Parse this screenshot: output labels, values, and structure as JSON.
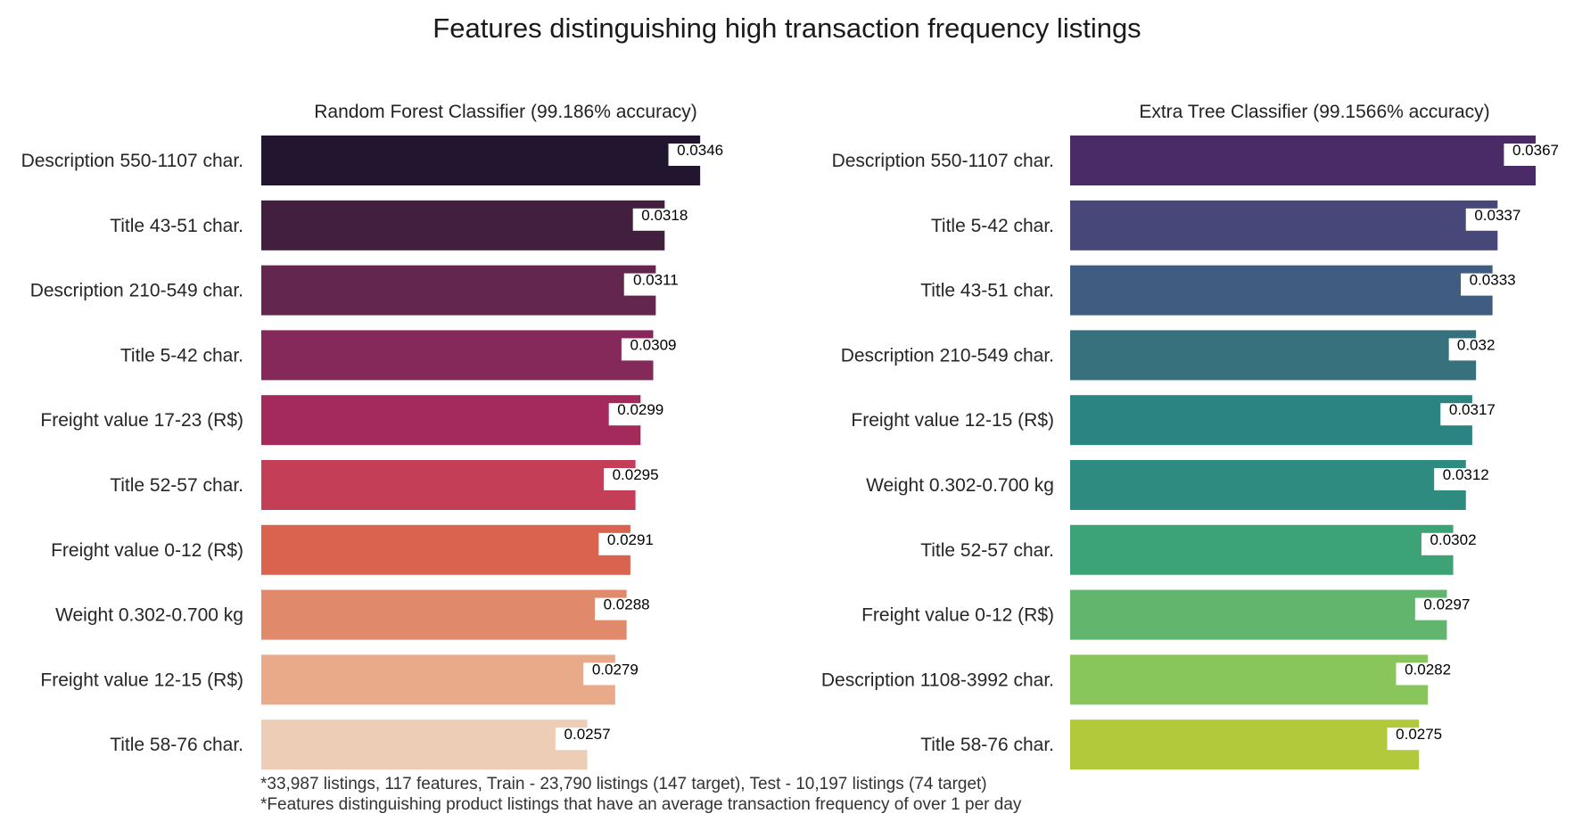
{
  "title": "Features distinguishing high transaction frequency listings",
  "chart_data": [
    {
      "type": "bar",
      "orientation": "horizontal",
      "title": "Random Forest Classifier (99.186% accuracy)",
      "categories": [
        "Description 550-1107 char.",
        "Title 43-51 char.",
        "Description 210-549 char.",
        "Title 5-42 char.",
        "Freight value 17-23 (R$)",
        "Title 52-57 char.",
        "Freight value 0-12 (R$)",
        "Weight 0.302-0.700 kg",
        "Freight value 12-15 (R$)",
        "Title 58-76 char."
      ],
      "values": [
        0.0346,
        0.0318,
        0.0311,
        0.0309,
        0.0299,
        0.0295,
        0.0291,
        0.0288,
        0.0279,
        0.0257
      ],
      "data_labels": [
        "0.0346",
        "0.0318",
        "0.0311",
        "0.0309",
        "0.0299",
        "0.0295",
        "0.0291",
        "0.0288",
        "0.0279",
        "0.0257"
      ],
      "colors": [
        "#221530",
        "#421f3f",
        "#63264f",
        "#85295a",
        "#a52a5c",
        "#c43e58",
        "#d9634f",
        "#e1896b",
        "#e8aa88",
        "#eecdb6"
      ],
      "xlim": [
        0,
        0.0367
      ],
      "grid": false,
      "xaxis_visible": false
    },
    {
      "type": "bar",
      "orientation": "horizontal",
      "title": "Extra Tree Classifier (99.1566% accuracy)",
      "categories": [
        "Description 550-1107 char.",
        "Title 5-42 char.",
        "Title 43-51 char.",
        "Description 210-549 char.",
        "Freight value 12-15 (R$)",
        "Weight 0.302-0.700 kg",
        "Title 52-57 char.",
        "Freight value 0-12 (R$)",
        "Description 1108-3992 char.",
        "Title 58-76 char."
      ],
      "values": [
        0.0367,
        0.0337,
        0.0333,
        0.032,
        0.0317,
        0.0312,
        0.0302,
        0.0297,
        0.0282,
        0.0275
      ],
      "data_labels": [
        "0.0367",
        "0.0337",
        "0.0333",
        "0.032",
        "0.0317",
        "0.0312",
        "0.0302",
        "0.0297",
        "0.0282",
        "0.0275"
      ],
      "colors": [
        "#4a2a67",
        "#484779",
        "#415c81",
        "#37717d",
        "#2b847f",
        "#2d8c7f",
        "#3ba376",
        "#61b56c",
        "#88c55b",
        "#b2c93c"
      ],
      "xlim": [
        0,
        0.0367
      ],
      "grid": false,
      "xaxis_visible": false
    }
  ],
  "footnotes": [
    "*33,987 listings, 117 features, Train - 23,790 listings (147 target), Test - 10,197 listings (74 target)",
    "*Features distinguishing product listings that have an average transaction frequency of over 1 per day"
  ]
}
